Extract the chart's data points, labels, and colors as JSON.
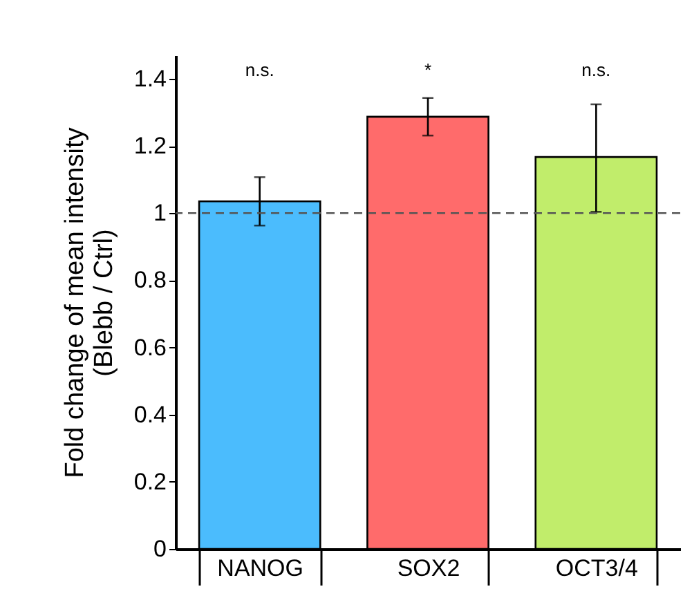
{
  "chart_data": {
    "type": "bar",
    "ylabel": "Fold change of mean intensity\n(Blebb / Ctrl)",
    "categories": [
      "NANOG",
      "SOX2",
      "OCT3/4"
    ],
    "values": [
      1.035,
      1.287,
      1.167
    ],
    "colors": [
      "#4bbcfd",
      "#ff6b6b",
      "#c1ed6b"
    ],
    "errors": [
      [
        0.963,
        1.107
      ],
      [
        1.231,
        1.343
      ],
      [
        1.004,
        1.324
      ]
    ],
    "ylim": [
      0,
      1.47
    ],
    "yticks": [
      0,
      0.2,
      0.4,
      0.6,
      0.8,
      1,
      1.2,
      1.4
    ],
    "grid": false,
    "ref_lines": [
      {
        "axis": "y",
        "value": 1,
        "color": "#555555",
        "line_style": "dashed"
      }
    ],
    "annotations": [
      "n.s.",
      "*",
      "n.s."
    ]
  }
}
